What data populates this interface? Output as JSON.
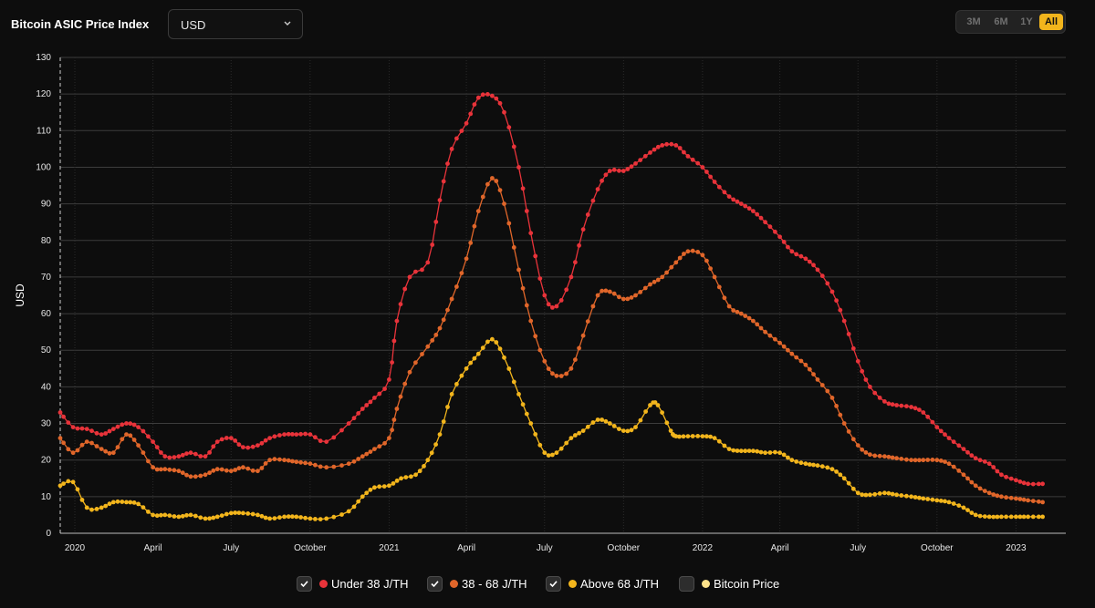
{
  "header": {
    "title": "Bitcoin ASIC Price Index",
    "currency": {
      "selected": "USD"
    },
    "ranges": [
      {
        "label": "3M",
        "active": false
      },
      {
        "label": "6M",
        "active": false
      },
      {
        "label": "1Y",
        "active": false
      },
      {
        "label": "All",
        "active": true
      }
    ]
  },
  "legend": [
    {
      "label": "Under 38 J/TH",
      "checked": true,
      "color": "#e8333a"
    },
    {
      "label": "38 - 68 J/TH",
      "checked": true,
      "color": "#e0662a"
    },
    {
      "label": "Above 68 J/TH",
      "checked": true,
      "color": "#f2b51c"
    },
    {
      "label": "Bitcoin Price",
      "checked": false,
      "color": "#fde28a"
    }
  ],
  "chart_data": {
    "type": "line",
    "ylabel": "USD",
    "xlabel": "",
    "ylim": [
      0,
      130
    ],
    "yticks": [
      0,
      10,
      20,
      30,
      40,
      50,
      60,
      70,
      80,
      90,
      100,
      110,
      120,
      130
    ],
    "xlim": [
      "2019-12-15",
      "2023-02-28"
    ],
    "x_ticks": [
      {
        "date": "2020-01-01",
        "label": "2020"
      },
      {
        "date": "2020-04-01",
        "label": "April"
      },
      {
        "date": "2020-07-01",
        "label": "July"
      },
      {
        "date": "2020-10-01",
        "label": "October"
      },
      {
        "date": "2021-01-01",
        "label": "2021"
      },
      {
        "date": "2021-04-01",
        "label": "April"
      },
      {
        "date": "2021-07-01",
        "label": "July"
      },
      {
        "date": "2021-10-01",
        "label": "October"
      },
      {
        "date": "2022-01-01",
        "label": "2022"
      },
      {
        "date": "2022-04-01",
        "label": "April"
      },
      {
        "date": "2022-07-01",
        "label": "July"
      },
      {
        "date": "2022-10-01",
        "label": "October"
      },
      {
        "date": "2023-01-01",
        "label": "2023"
      }
    ],
    "grid": true,
    "legend_position": "bottom",
    "series": [
      {
        "name": "Under 38 J/TH",
        "color": "#e8333a",
        "points": [
          [
            "2019-12-15",
            33
          ],
          [
            "2019-12-30",
            29
          ],
          [
            "2020-01-15",
            28.5
          ],
          [
            "2020-02-01",
            27
          ],
          [
            "2020-02-15",
            28.5
          ],
          [
            "2020-03-01",
            30
          ],
          [
            "2020-03-15",
            29
          ],
          [
            "2020-04-01",
            25
          ],
          [
            "2020-04-15",
            21
          ],
          [
            "2020-05-01",
            21
          ],
          [
            "2020-05-15",
            22
          ],
          [
            "2020-06-01",
            21
          ],
          [
            "2020-06-15",
            25
          ],
          [
            "2020-07-01",
            26
          ],
          [
            "2020-07-15",
            23.5
          ],
          [
            "2020-08-01",
            24
          ],
          [
            "2020-08-15",
            26
          ],
          [
            "2020-09-01",
            27
          ],
          [
            "2020-09-15",
            27
          ],
          [
            "2020-10-01",
            27
          ],
          [
            "2020-10-20",
            25
          ],
          [
            "2020-11-15",
            30
          ],
          [
            "2020-12-01",
            34
          ],
          [
            "2020-12-15",
            37
          ],
          [
            "2021-01-01",
            42
          ],
          [
            "2021-01-10",
            58
          ],
          [
            "2021-01-25",
            70
          ],
          [
            "2021-02-15",
            74
          ],
          [
            "2021-03-01",
            91
          ],
          [
            "2021-03-15",
            105
          ],
          [
            "2021-04-01",
            112
          ],
          [
            "2021-04-15",
            119
          ],
          [
            "2021-05-01",
            119.5
          ],
          [
            "2021-05-15",
            115
          ],
          [
            "2021-06-01",
            100
          ],
          [
            "2021-06-15",
            82
          ],
          [
            "2021-07-01",
            65
          ],
          [
            "2021-07-15",
            62
          ],
          [
            "2021-08-01",
            70
          ],
          [
            "2021-08-15",
            83
          ],
          [
            "2021-09-01",
            94
          ],
          [
            "2021-09-15",
            99
          ],
          [
            "2021-10-01",
            99
          ],
          [
            "2021-10-15",
            101
          ],
          [
            "2021-11-01",
            104
          ],
          [
            "2021-11-15",
            106
          ],
          [
            "2021-12-01",
            106
          ],
          [
            "2021-12-15",
            103
          ],
          [
            "2022-01-01",
            100
          ],
          [
            "2022-01-15",
            96
          ],
          [
            "2022-02-01",
            92
          ],
          [
            "2022-02-15",
            90
          ],
          [
            "2022-03-01",
            88
          ],
          [
            "2022-03-15",
            85
          ],
          [
            "2022-04-01",
            81
          ],
          [
            "2022-04-15",
            77
          ],
          [
            "2022-05-01",
            75
          ],
          [
            "2022-05-15",
            72
          ],
          [
            "2022-06-01",
            66
          ],
          [
            "2022-06-15",
            58
          ],
          [
            "2022-07-01",
            47
          ],
          [
            "2022-07-15",
            40
          ],
          [
            "2022-08-01",
            36
          ],
          [
            "2022-08-15",
            35
          ],
          [
            "2022-09-01",
            34.5
          ],
          [
            "2022-09-15",
            33
          ],
          [
            "2022-10-01",
            29
          ],
          [
            "2022-10-15",
            26
          ],
          [
            "2022-11-01",
            23
          ],
          [
            "2022-11-15",
            20.5
          ],
          [
            "2022-12-01",
            19
          ],
          [
            "2022-12-15",
            16
          ],
          [
            "2023-01-01",
            14.5
          ],
          [
            "2023-01-15",
            13.5
          ],
          [
            "2023-02-01",
            13.5
          ]
        ]
      },
      {
        "name": "38 - 68 J/TH",
        "color": "#e0662a",
        "points": [
          [
            "2019-12-15",
            26
          ],
          [
            "2019-12-30",
            22
          ],
          [
            "2020-01-15",
            25
          ],
          [
            "2020-02-01",
            23
          ],
          [
            "2020-02-15",
            22
          ],
          [
            "2020-03-01",
            27
          ],
          [
            "2020-03-15",
            24
          ],
          [
            "2020-04-01",
            18
          ],
          [
            "2020-04-15",
            17.5
          ],
          [
            "2020-05-01",
            17
          ],
          [
            "2020-05-15",
            15.5
          ],
          [
            "2020-06-01",
            16
          ],
          [
            "2020-06-15",
            17.5
          ],
          [
            "2020-07-01",
            17
          ],
          [
            "2020-07-15",
            18
          ],
          [
            "2020-08-01",
            17
          ],
          [
            "2020-08-15",
            20
          ],
          [
            "2020-09-01",
            20
          ],
          [
            "2020-09-15",
            19.5
          ],
          [
            "2020-10-01",
            19
          ],
          [
            "2020-10-20",
            18
          ],
          [
            "2020-11-15",
            19
          ],
          [
            "2020-12-01",
            21
          ],
          [
            "2020-12-15",
            23
          ],
          [
            "2021-01-01",
            26
          ],
          [
            "2021-01-10",
            34
          ],
          [
            "2021-01-25",
            44
          ],
          [
            "2021-02-15",
            51
          ],
          [
            "2021-03-01",
            56
          ],
          [
            "2021-03-15",
            64
          ],
          [
            "2021-04-01",
            75
          ],
          [
            "2021-04-15",
            88
          ],
          [
            "2021-05-01",
            97
          ],
          [
            "2021-05-15",
            90
          ],
          [
            "2021-06-01",
            72
          ],
          [
            "2021-06-15",
            58
          ],
          [
            "2021-07-01",
            47
          ],
          [
            "2021-07-15",
            43
          ],
          [
            "2021-08-01",
            45
          ],
          [
            "2021-08-15",
            54
          ],
          [
            "2021-09-01",
            65
          ],
          [
            "2021-09-15",
            66
          ],
          [
            "2021-10-01",
            64
          ],
          [
            "2021-10-15",
            65
          ],
          [
            "2021-11-01",
            68
          ],
          [
            "2021-11-15",
            70
          ],
          [
            "2021-12-01",
            74
          ],
          [
            "2021-12-15",
            77
          ],
          [
            "2022-01-01",
            76
          ],
          [
            "2022-01-15",
            70
          ],
          [
            "2022-02-01",
            62
          ],
          [
            "2022-02-15",
            60
          ],
          [
            "2022-03-01",
            58
          ],
          [
            "2022-03-15",
            55
          ],
          [
            "2022-04-01",
            52
          ],
          [
            "2022-04-15",
            49
          ],
          [
            "2022-05-01",
            46
          ],
          [
            "2022-05-15",
            42
          ],
          [
            "2022-06-01",
            37
          ],
          [
            "2022-06-15",
            30
          ],
          [
            "2022-07-01",
            24
          ],
          [
            "2022-07-15",
            21.5
          ],
          [
            "2022-08-01",
            21
          ],
          [
            "2022-08-15",
            20.5
          ],
          [
            "2022-09-01",
            20
          ],
          [
            "2022-09-15",
            20
          ],
          [
            "2022-10-01",
            20
          ],
          [
            "2022-10-15",
            19
          ],
          [
            "2022-11-01",
            16
          ],
          [
            "2022-11-15",
            13
          ],
          [
            "2022-12-01",
            11
          ],
          [
            "2022-12-15",
            10
          ],
          [
            "2023-01-01",
            9.5
          ],
          [
            "2023-01-15",
            9
          ],
          [
            "2023-02-01",
            8.5
          ]
        ]
      },
      {
        "name": "Above 68 J/TH",
        "color": "#f2b51c",
        "points": [
          [
            "2019-12-15",
            13
          ],
          [
            "2019-12-30",
            14
          ],
          [
            "2020-01-15",
            7
          ],
          [
            "2020-02-01",
            7
          ],
          [
            "2020-02-15",
            8.5
          ],
          [
            "2020-03-01",
            8.5
          ],
          [
            "2020-03-15",
            8
          ],
          [
            "2020-04-01",
            5
          ],
          [
            "2020-04-15",
            5
          ],
          [
            "2020-05-01",
            4.5
          ],
          [
            "2020-05-15",
            5
          ],
          [
            "2020-06-01",
            4
          ],
          [
            "2020-06-15",
            4.5
          ],
          [
            "2020-07-01",
            5.5
          ],
          [
            "2020-07-15",
            5.5
          ],
          [
            "2020-08-01",
            5
          ],
          [
            "2020-08-15",
            4
          ],
          [
            "2020-09-01",
            4.5
          ],
          [
            "2020-09-15",
            4.5
          ],
          [
            "2020-10-01",
            4
          ],
          [
            "2020-10-20",
            4
          ],
          [
            "2020-11-15",
            6
          ],
          [
            "2020-12-01",
            10
          ],
          [
            "2020-12-15",
            12.5
          ],
          [
            "2021-01-01",
            13
          ],
          [
            "2021-01-15",
            15
          ],
          [
            "2021-02-01",
            16
          ],
          [
            "2021-02-15",
            20
          ],
          [
            "2021-03-01",
            27
          ],
          [
            "2021-03-15",
            38
          ],
          [
            "2021-04-01",
            45
          ],
          [
            "2021-04-15",
            49
          ],
          [
            "2021-05-01",
            53
          ],
          [
            "2021-05-15",
            48
          ],
          [
            "2021-06-01",
            38
          ],
          [
            "2021-06-15",
            30
          ],
          [
            "2021-07-01",
            22
          ],
          [
            "2021-07-15",
            22
          ],
          [
            "2021-08-01",
            26
          ],
          [
            "2021-08-15",
            28
          ],
          [
            "2021-09-01",
            31
          ],
          [
            "2021-09-15",
            30
          ],
          [
            "2021-10-01",
            28
          ],
          [
            "2021-10-15",
            29
          ],
          [
            "2021-11-01",
            35
          ],
          [
            "2021-11-10",
            35
          ],
          [
            "2021-11-25",
            28
          ],
          [
            "2021-12-01",
            26.5
          ],
          [
            "2021-12-15",
            26.5
          ],
          [
            "2022-01-01",
            26.5
          ],
          [
            "2022-01-15",
            26
          ],
          [
            "2022-02-01",
            23
          ],
          [
            "2022-02-15",
            22.5
          ],
          [
            "2022-03-01",
            22.5
          ],
          [
            "2022-03-15",
            22
          ],
          [
            "2022-04-01",
            22
          ],
          [
            "2022-04-15",
            20
          ],
          [
            "2022-05-01",
            19
          ],
          [
            "2022-05-15",
            18.5
          ],
          [
            "2022-06-01",
            17.5
          ],
          [
            "2022-06-15",
            15
          ],
          [
            "2022-07-01",
            11
          ],
          [
            "2022-07-15",
            10.5
          ],
          [
            "2022-08-01",
            11
          ],
          [
            "2022-08-15",
            10.5
          ],
          [
            "2022-09-01",
            10
          ],
          [
            "2022-09-15",
            9.5
          ],
          [
            "2022-10-01",
            9
          ],
          [
            "2022-10-15",
            8.5
          ],
          [
            "2022-11-01",
            7
          ],
          [
            "2022-11-15",
            5
          ],
          [
            "2022-12-01",
            4.5
          ],
          [
            "2022-12-15",
            4.5
          ],
          [
            "2023-01-01",
            4.5
          ],
          [
            "2023-01-15",
            4.5
          ],
          [
            "2023-02-01",
            4.5
          ]
        ]
      }
    ]
  }
}
